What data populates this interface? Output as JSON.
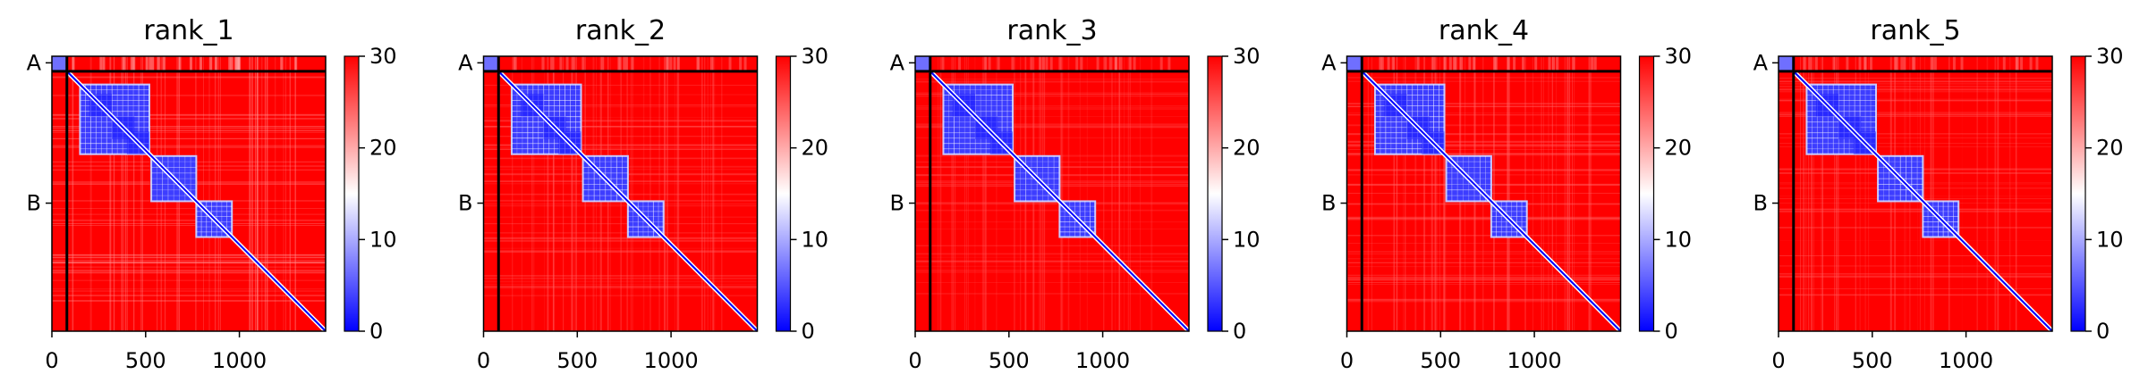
{
  "chart_data": [
    {
      "type": "heatmap",
      "title": "rank_1",
      "xlim": [
        0,
        1460
      ],
      "ylim": [
        1460,
        0
      ],
      "xticks": [
        0,
        500,
        1000
      ],
      "chain_labels": [
        "A",
        "B"
      ],
      "chain_label_positions": [
        35,
        780
      ],
      "chain_boundary": 80,
      "colorbar": {
        "ticks": [
          0,
          10,
          20,
          30
        ],
        "range": [
          0,
          30
        ],
        "colors": [
          "#0000ff",
          "#ffffff",
          "#ff0000"
        ]
      },
      "domains": [
        [
          150,
          520
        ],
        [
          530,
          770
        ],
        [
          770,
          960
        ]
      ],
      "streak_level": 0.85
    },
    {
      "type": "heatmap",
      "title": "rank_2",
      "xlim": [
        0,
        1460
      ],
      "ylim": [
        1460,
        0
      ],
      "xticks": [
        0,
        500,
        1000
      ],
      "chain_labels": [
        "A",
        "B"
      ],
      "chain_label_positions": [
        35,
        780
      ],
      "chain_boundary": 80,
      "colorbar": {
        "ticks": [
          0,
          10,
          20,
          30
        ],
        "range": [
          0,
          30
        ],
        "colors": [
          "#0000ff",
          "#ffffff",
          "#ff0000"
        ]
      },
      "domains": [
        [
          150,
          520
        ],
        [
          530,
          770
        ],
        [
          770,
          960
        ]
      ],
      "streak_level": 0.55
    },
    {
      "type": "heatmap",
      "title": "rank_3",
      "xlim": [
        0,
        1460
      ],
      "ylim": [
        1460,
        0
      ],
      "xticks": [
        0,
        500,
        1000
      ],
      "chain_labels": [
        "A",
        "B"
      ],
      "chain_label_positions": [
        35,
        780
      ],
      "chain_boundary": 80,
      "colorbar": {
        "ticks": [
          0,
          10,
          20,
          30
        ],
        "range": [
          0,
          30
        ],
        "colors": [
          "#0000ff",
          "#ffffff",
          "#ff0000"
        ]
      },
      "domains": [
        [
          150,
          520
        ],
        [
          530,
          770
        ],
        [
          770,
          960
        ]
      ],
      "streak_level": 0.5
    },
    {
      "type": "heatmap",
      "title": "rank_4",
      "xlim": [
        0,
        1460
      ],
      "ylim": [
        1460,
        0
      ],
      "xticks": [
        0,
        500,
        1000
      ],
      "chain_labels": [
        "A",
        "B"
      ],
      "chain_label_positions": [
        35,
        780
      ],
      "chain_boundary": 80,
      "colorbar": {
        "ticks": [
          0,
          10,
          20,
          30
        ],
        "range": [
          0,
          30
        ],
        "colors": [
          "#0000ff",
          "#ffffff",
          "#ff0000"
        ]
      },
      "domains": [
        [
          150,
          520
        ],
        [
          530,
          770
        ],
        [
          770,
          960
        ]
      ],
      "streak_level": 0.6
    },
    {
      "type": "heatmap",
      "title": "rank_5",
      "xlim": [
        0,
        1460
      ],
      "ylim": [
        1460,
        0
      ],
      "xticks": [
        0,
        500,
        1000
      ],
      "chain_labels": [
        "A",
        "B"
      ],
      "chain_label_positions": [
        35,
        780
      ],
      "chain_boundary": 80,
      "colorbar": {
        "ticks": [
          0,
          10,
          20,
          30
        ],
        "range": [
          0,
          30
        ],
        "colors": [
          "#0000ff",
          "#ffffff",
          "#ff0000"
        ]
      },
      "domains": [
        [
          150,
          520
        ],
        [
          530,
          770
        ],
        [
          770,
          960
        ]
      ],
      "streak_level": 0.55
    }
  ]
}
